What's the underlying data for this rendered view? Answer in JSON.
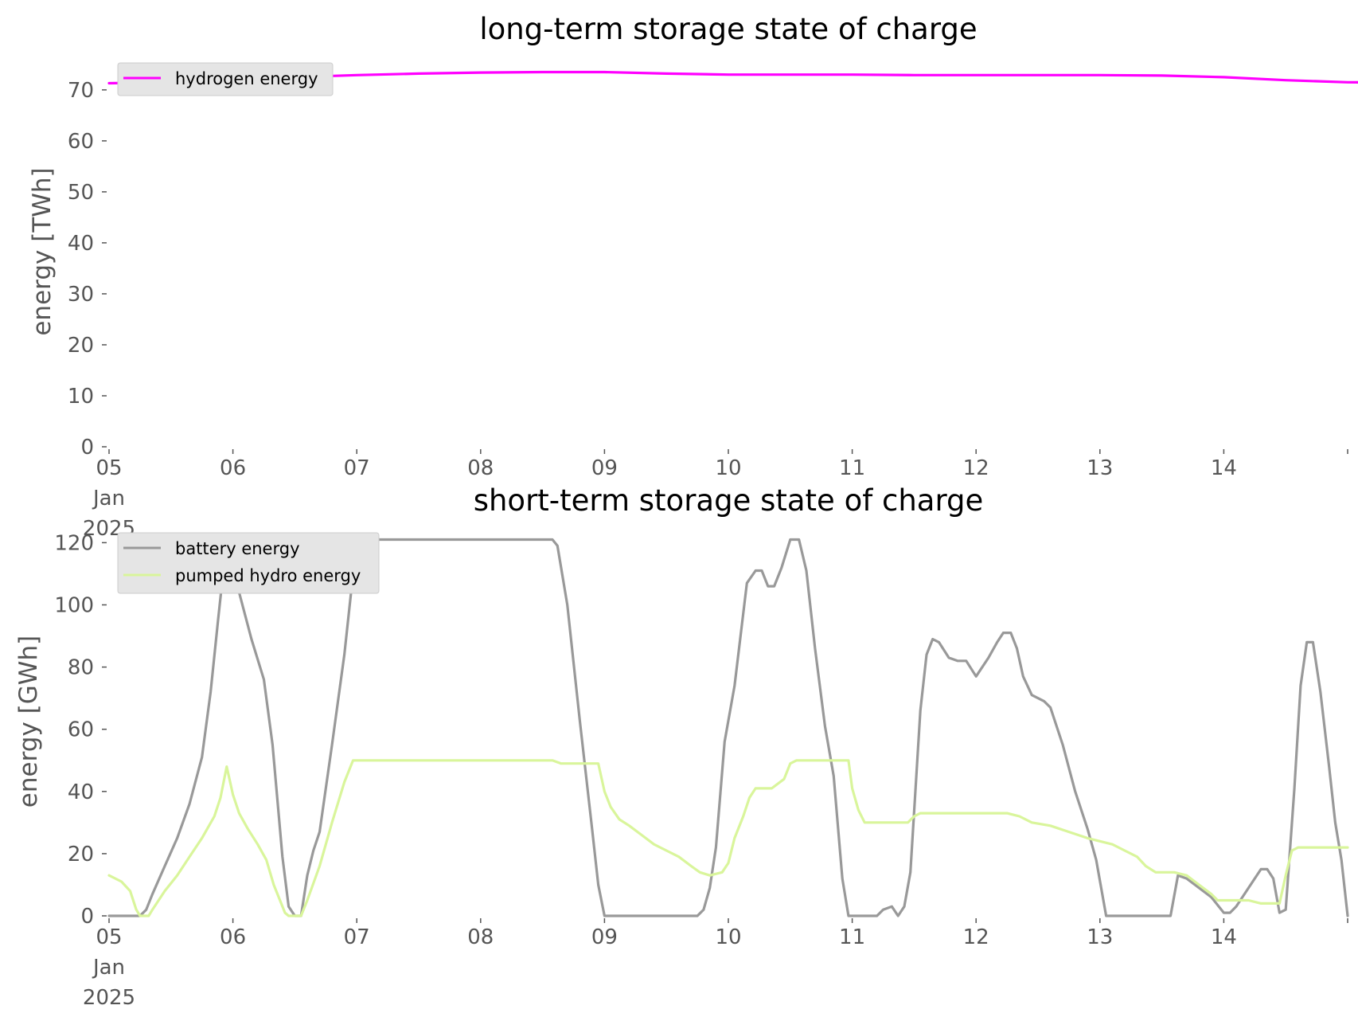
{
  "chart_data": [
    {
      "type": "line",
      "title": "long-term storage state of charge",
      "xlabel": "",
      "ylabel": "energy [TWh]",
      "ylim": [
        0,
        73.5
      ],
      "yticks": [
        "0",
        "10",
        "20",
        "30",
        "40",
        "50",
        "60",
        "70"
      ],
      "xticks": [
        "05\nJan\n2025",
        "06",
        "07",
        "08",
        "09",
        "10",
        "11",
        "12",
        "13",
        "14"
      ],
      "legend": "top-left",
      "grid": false,
      "series": [
        {
          "name": "hydrogen energy",
          "color": "#ff00ff",
          "points": [
            [
              0.0,
              71.3
            ],
            [
              0.5,
              71.5
            ],
            [
              1.0,
              72.0
            ],
            [
              1.5,
              72.5
            ],
            [
              2.0,
              72.9
            ],
            [
              2.5,
              73.2
            ],
            [
              3.0,
              73.4
            ],
            [
              3.5,
              73.5
            ],
            [
              4.0,
              73.5
            ],
            [
              4.5,
              73.2
            ],
            [
              5.0,
              73.0
            ],
            [
              5.5,
              73.0
            ],
            [
              6.0,
              73.0
            ],
            [
              6.5,
              72.9
            ],
            [
              7.0,
              72.9
            ],
            [
              7.5,
              72.9
            ],
            [
              8.0,
              72.9
            ],
            [
              8.5,
              72.8
            ],
            [
              9.0,
              72.5
            ],
            [
              9.5,
              71.9
            ],
            [
              10.0,
              71.5
            ],
            [
              10.5,
              71.4
            ],
            [
              11.0,
              71.3
            ],
            [
              11.5,
              71.3
            ],
            [
              12.0,
              71.3
            ]
          ]
        }
      ]
    },
    {
      "type": "line",
      "title": "short-term storage state of charge",
      "xlabel": "",
      "ylabel": "energy [GWh]",
      "ylim": [
        0,
        121
      ],
      "yticks": [
        "0",
        "20",
        "40",
        "60",
        "80",
        "100",
        "120"
      ],
      "xticks": [
        "05\nJan\n2025",
        "06",
        "07",
        "08",
        "09",
        "10",
        "11",
        "12",
        "13",
        "14"
      ],
      "legend": "top-left",
      "grid": false,
      "series": [
        {
          "name": "battery energy",
          "color": "#999999",
          "points": [
            [
              0.0,
              0.0
            ],
            [
              0.25,
              0.0
            ],
            [
              0.3,
              2.0
            ],
            [
              0.35,
              7.0
            ],
            [
              0.45,
              16.0
            ],
            [
              0.55,
              25.0
            ],
            [
              0.65,
              36.0
            ],
            [
              0.75,
              51.0
            ],
            [
              0.82,
              72.0
            ],
            [
              0.88,
              95.0
            ],
            [
              0.95,
              121.0
            ],
            [
              1.05,
              104.0
            ],
            [
              1.15,
              89.0
            ],
            [
              1.25,
              76.0
            ],
            [
              1.32,
              55.0
            ],
            [
              1.4,
              19.0
            ],
            [
              1.45,
              3.0
            ],
            [
              1.5,
              0.0
            ],
            [
              1.55,
              0.0
            ],
            [
              1.6,
              13.0
            ],
            [
              1.65,
              21.0
            ],
            [
              1.7,
              27.0
            ],
            [
              1.8,
              55.0
            ],
            [
              1.9,
              84.0
            ],
            [
              2.0,
              121.0
            ],
            [
              2.5,
              121.0
            ],
            [
              3.0,
              121.0
            ],
            [
              3.5,
              121.0
            ],
            [
              3.58,
              121.0
            ],
            [
              3.62,
              119.0
            ],
            [
              3.7,
              100.0
            ],
            [
              3.8,
              63.0
            ],
            [
              3.9,
              28.0
            ],
            [
              3.95,
              10.0
            ],
            [
              4.0,
              0.0
            ],
            [
              4.5,
              0.0
            ],
            [
              4.75,
              0.0
            ],
            [
              4.8,
              2.0
            ],
            [
              4.85,
              9.0
            ],
            [
              4.9,
              22.0
            ],
            [
              4.97,
              56.0
            ],
            [
              5.05,
              74.0
            ],
            [
              5.15,
              107.0
            ],
            [
              5.22,
              111.0
            ],
            [
              5.27,
              111.0
            ],
            [
              5.32,
              106.0
            ],
            [
              5.37,
              106.0
            ],
            [
              5.43,
              112.0
            ],
            [
              5.5,
              121.0
            ],
            [
              5.57,
              121.0
            ],
            [
              5.63,
              111.0
            ],
            [
              5.7,
              86.0
            ],
            [
              5.78,
              61.0
            ],
            [
              5.85,
              45.0
            ],
            [
              5.92,
              12.0
            ],
            [
              5.97,
              0.0
            ],
            [
              6.2,
              0.0
            ],
            [
              6.25,
              2.0
            ],
            [
              6.32,
              3.0
            ],
            [
              6.37,
              0.0
            ],
            [
              6.42,
              3.0
            ],
            [
              6.47,
              14.0
            ],
            [
              6.55,
              66.0
            ],
            [
              6.6,
              84.0
            ],
            [
              6.65,
              89.0
            ],
            [
              6.7,
              88.0
            ],
            [
              6.78,
              83.0
            ],
            [
              6.85,
              82.0
            ],
            [
              6.92,
              82.0
            ],
            [
              7.0,
              77.0
            ],
            [
              7.1,
              83.0
            ],
            [
              7.17,
              88.0
            ],
            [
              7.22,
              91.0
            ],
            [
              7.28,
              91.0
            ],
            [
              7.33,
              86.0
            ],
            [
              7.38,
              77.0
            ],
            [
              7.45,
              71.0
            ],
            [
              7.55,
              69.0
            ],
            [
              7.6,
              67.0
            ],
            [
              7.7,
              55.0
            ],
            [
              7.8,
              40.0
            ],
            [
              7.9,
              28.0
            ],
            [
              7.97,
              18.0
            ],
            [
              8.05,
              0.0
            ],
            [
              8.5,
              0.0
            ],
            [
              8.57,
              0.0
            ],
            [
              8.63,
              13.0
            ],
            [
              8.7,
              12.0
            ],
            [
              8.8,
              9.0
            ],
            [
              8.9,
              6.0
            ],
            [
              8.98,
              2.0
            ],
            [
              9.0,
              1.0
            ],
            [
              9.05,
              1.0
            ],
            [
              9.1,
              3.0
            ],
            [
              9.2,
              9.0
            ],
            [
              9.3,
              15.0
            ],
            [
              9.35,
              15.0
            ],
            [
              9.4,
              12.0
            ],
            [
              9.45,
              1.0
            ],
            [
              9.5,
              2.0
            ],
            [
              9.57,
              41.0
            ],
            [
              9.62,
              74.0
            ],
            [
              9.67,
              88.0
            ],
            [
              9.72,
              88.0
            ],
            [
              9.78,
              72.0
            ],
            [
              9.85,
              48.0
            ],
            [
              9.9,
              30.0
            ],
            [
              9.95,
              18.0
            ],
            [
              10.0,
              0.0
            ]
          ]
        },
        {
          "name": "pumped hydro energy",
          "color": "#d9f59b",
          "points": [
            [
              0.0,
              13.0
            ],
            [
              0.1,
              11.0
            ],
            [
              0.17,
              8.0
            ],
            [
              0.22,
              2.0
            ],
            [
              0.25,
              0.0
            ],
            [
              0.32,
              0.0
            ],
            [
              0.35,
              2.0
            ],
            [
              0.45,
              8.0
            ],
            [
              0.55,
              13.0
            ],
            [
              0.65,
              19.0
            ],
            [
              0.75,
              25.0
            ],
            [
              0.85,
              32.0
            ],
            [
              0.9,
              38.0
            ],
            [
              0.95,
              48.0
            ],
            [
              1.0,
              39.0
            ],
            [
              1.05,
              33.0
            ],
            [
              1.12,
              28.0
            ],
            [
              1.2,
              23.0
            ],
            [
              1.27,
              18.0
            ],
            [
              1.33,
              10.0
            ],
            [
              1.42,
              1.0
            ],
            [
              1.45,
              0.0
            ],
            [
              1.55,
              0.0
            ],
            [
              1.6,
              5.0
            ],
            [
              1.7,
              16.0
            ],
            [
              1.8,
              30.0
            ],
            [
              1.9,
              43.0
            ],
            [
              1.97,
              50.0
            ],
            [
              2.5,
              50.0
            ],
            [
              3.0,
              50.0
            ],
            [
              3.5,
              50.0
            ],
            [
              3.58,
              50.0
            ],
            [
              3.65,
              49.0
            ],
            [
              3.8,
              49.0
            ],
            [
              3.95,
              49.0
            ],
            [
              4.0,
              40.0
            ],
            [
              4.05,
              35.0
            ],
            [
              4.12,
              31.0
            ],
            [
              4.2,
              29.0
            ],
            [
              4.3,
              26.0
            ],
            [
              4.4,
              23.0
            ],
            [
              4.5,
              21.0
            ],
            [
              4.6,
              19.0
            ],
            [
              4.7,
              16.0
            ],
            [
              4.77,
              14.0
            ],
            [
              4.85,
              13.0
            ],
            [
              4.95,
              14.0
            ],
            [
              5.0,
              17.0
            ],
            [
              5.05,
              25.0
            ],
            [
              5.12,
              32.0
            ],
            [
              5.17,
              38.0
            ],
            [
              5.22,
              41.0
            ],
            [
              5.35,
              41.0
            ],
            [
              5.45,
              44.0
            ],
            [
              5.5,
              49.0
            ],
            [
              5.55,
              50.0
            ],
            [
              5.97,
              50.0
            ],
            [
              6.0,
              41.0
            ],
            [
              6.05,
              34.0
            ],
            [
              6.1,
              30.0
            ],
            [
              6.15,
              30.0
            ],
            [
              6.3,
              30.0
            ],
            [
              6.45,
              30.0
            ],
            [
              6.5,
              32.0
            ],
            [
              6.55,
              33.0
            ],
            [
              6.8,
              33.0
            ],
            [
              7.2,
              33.0
            ],
            [
              7.25,
              33.0
            ],
            [
              7.35,
              32.0
            ],
            [
              7.45,
              30.0
            ],
            [
              7.6,
              29.0
            ],
            [
              7.75,
              27.0
            ],
            [
              7.9,
              25.0
            ],
            [
              8.0,
              24.0
            ],
            [
              8.1,
              23.0
            ],
            [
              8.2,
              21.0
            ],
            [
              8.3,
              19.0
            ],
            [
              8.37,
              16.0
            ],
            [
              8.45,
              14.0
            ],
            [
              8.5,
              14.0
            ],
            [
              8.6,
              14.0
            ],
            [
              8.7,
              13.0
            ],
            [
              8.8,
              10.0
            ],
            [
              8.9,
              7.0
            ],
            [
              8.95,
              5.0
            ],
            [
              9.05,
              5.0
            ],
            [
              9.2,
              5.0
            ],
            [
              9.3,
              4.0
            ],
            [
              9.4,
              4.0
            ],
            [
              9.45,
              4.0
            ],
            [
              9.5,
              13.0
            ],
            [
              9.55,
              21.0
            ],
            [
              9.6,
              22.0
            ],
            [
              9.7,
              22.0
            ],
            [
              9.8,
              22.0
            ],
            [
              10.0,
              22.0
            ]
          ]
        }
      ]
    }
  ]
}
